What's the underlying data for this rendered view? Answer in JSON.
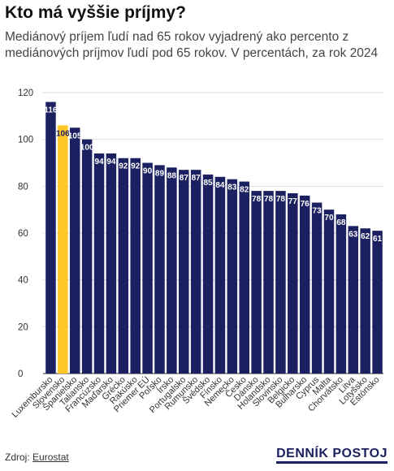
{
  "chart_data": {
    "type": "bar",
    "title": "Kto má vyššie príjmy?",
    "subtitle": "Mediánový príjem ľudí nad 65 rokov vyjadrený ako percento z mediánových príjmov ľudí pod 65 rokov. V percentách, za rok 2024",
    "categories": [
      "Luxembursko",
      "Slovensko",
      "Španielsko",
      "Taliansko",
      "Francúzsko",
      "Maďarsko",
      "Grécko",
      "Rakúsko",
      "Priemer EÚ",
      "Poľsko",
      "Írsko",
      "Portugalsko",
      "Rumunsko",
      "Švédsko",
      "Fínsko",
      "Nemecko",
      "Česko",
      "Dánsko",
      "Holandsko",
      "Slovinsko",
      "Belgicko",
      "Bulharsko",
      "Cyprus",
      "Malta",
      "Chorvátsko",
      "Litva",
      "Lotyšsko",
      "Estónsko"
    ],
    "values": [
      116,
      106,
      105,
      100,
      94,
      94,
      92,
      92,
      90,
      89,
      88,
      87,
      87,
      85,
      84,
      83,
      82,
      78,
      78,
      78,
      77,
      76,
      73,
      70,
      68,
      63,
      62,
      61
    ],
    "colors": [
      "#1b2160",
      "#ffc629",
      "#1b2160",
      "#1b2160",
      "#1b2160",
      "#1b2160",
      "#1b2160",
      "#1b2160",
      "#1b2160",
      "#1b2160",
      "#1b2160",
      "#1b2160",
      "#1b2160",
      "#1b2160",
      "#1b2160",
      "#1b2160",
      "#1b2160",
      "#1b2160",
      "#1b2160",
      "#1b2160",
      "#1b2160",
      "#1b2160",
      "#1b2160",
      "#1b2160",
      "#1b2160",
      "#1b2160",
      "#1b2160",
      "#1b2160"
    ],
    "ylim": [
      0,
      120
    ],
    "yticks": [
      0,
      20,
      40,
      60,
      80,
      100,
      120
    ],
    "grid": true,
    "source_label": "Zdroj:",
    "source": "Eurostat"
  },
  "brand": "DENNÍK POSTOJ"
}
